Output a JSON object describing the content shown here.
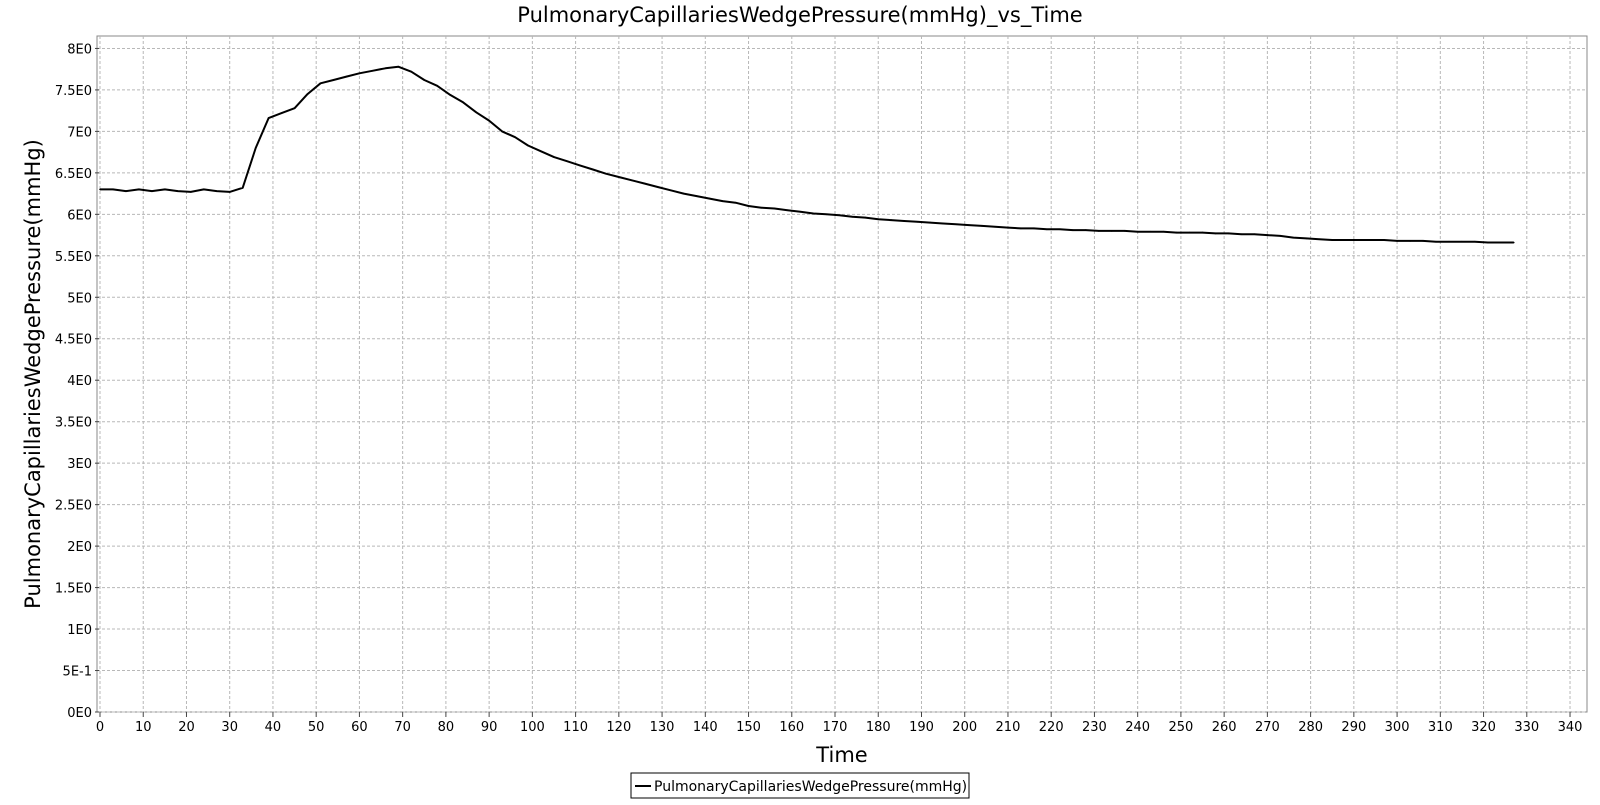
{
  "chart_data": {
    "type": "line",
    "title": "PulmonaryCapillariesWedgePressure(mmHg)_vs_Time",
    "xlabel": "Time",
    "ylabel": "PulmonaryCapillariesWedgePressure(mmHg)",
    "xlim": [
      0,
      343
    ],
    "ylim": [
      0,
      8.15
    ],
    "x_ticks": [
      0,
      10,
      20,
      30,
      40,
      50,
      60,
      70,
      80,
      90,
      100,
      110,
      120,
      130,
      140,
      150,
      160,
      170,
      180,
      190,
      200,
      210,
      220,
      230,
      240,
      250,
      260,
      270,
      280,
      290,
      300,
      310,
      320,
      330,
      340
    ],
    "x_tick_labels": [
      "0",
      "10",
      "20",
      "30",
      "40",
      "50",
      "60",
      "70",
      "80",
      "90",
      "100",
      "110",
      "120",
      "130",
      "140",
      "150",
      "160",
      "170",
      "180",
      "190",
      "200",
      "210",
      "220",
      "230",
      "240",
      "250",
      "260",
      "270",
      "280",
      "290",
      "300",
      "310",
      "320",
      "330",
      "340"
    ],
    "y_ticks": [
      0,
      0.5,
      1,
      1.5,
      2,
      2.5,
      3,
      3.5,
      4,
      4.5,
      5,
      5.5,
      6,
      6.5,
      7,
      7.5,
      8
    ],
    "y_tick_labels": [
      "0E0",
      "5E-1",
      "1E0",
      "1.5E0",
      "2E0",
      "2.5E0",
      "3E0",
      "3.5E0",
      "4E0",
      "4.5E0",
      "5E0",
      "5.5E0",
      "6E0",
      "6.5E0",
      "7E0",
      "7.5E0",
      "8E0"
    ],
    "grid": true,
    "legend": {
      "position": "bottom-center",
      "entries": [
        "PulmonaryCapillariesWedgePressure(mmHg)"
      ]
    },
    "series": [
      {
        "name": "PulmonaryCapillariesWedgePressure(mmHg)",
        "color": "#000000",
        "x": [
          0,
          3,
          6,
          9,
          12,
          15,
          18,
          21,
          24,
          27,
          30,
          33,
          36,
          39,
          42,
          45,
          48,
          51,
          54,
          57,
          60,
          63,
          66,
          69,
          72,
          75,
          78,
          81,
          84,
          87,
          90,
          93,
          96,
          99,
          102,
          105,
          108,
          111,
          114,
          117,
          120,
          123,
          126,
          129,
          132,
          135,
          138,
          141,
          144,
          147,
          150,
          153,
          156,
          159,
          162,
          165,
          168,
          171,
          174,
          177,
          180,
          183,
          186,
          189,
          192,
          195,
          198,
          201,
          204,
          207,
          210,
          213,
          216,
          219,
          222,
          225,
          228,
          231,
          234,
          237,
          240,
          243,
          246,
          249,
          252,
          255,
          258,
          261,
          264,
          267,
          270,
          273,
          276,
          279,
          282,
          285,
          288,
          291,
          294,
          297,
          300,
          303,
          306,
          309,
          312,
          315,
          318,
          321,
          324,
          327
        ],
        "y": [
          6.3,
          6.3,
          6.28,
          6.3,
          6.28,
          6.3,
          6.28,
          6.27,
          6.3,
          6.28,
          6.27,
          6.32,
          6.8,
          7.16,
          7.22,
          7.28,
          7.45,
          7.58,
          7.62,
          7.66,
          7.7,
          7.73,
          7.76,
          7.78,
          7.72,
          7.62,
          7.55,
          7.44,
          7.35,
          7.23,
          7.13,
          7.0,
          6.93,
          6.83,
          6.76,
          6.69,
          6.64,
          6.59,
          6.54,
          6.49,
          6.45,
          6.41,
          6.37,
          6.33,
          6.29,
          6.25,
          6.22,
          6.19,
          6.16,
          6.14,
          6.1,
          6.08,
          6.07,
          6.05,
          6.03,
          6.01,
          6.0,
          5.99,
          5.97,
          5.96,
          5.94,
          5.93,
          5.92,
          5.91,
          5.9,
          5.89,
          5.88,
          5.87,
          5.86,
          5.85,
          5.84,
          5.83,
          5.83,
          5.82,
          5.82,
          5.81,
          5.81,
          5.8,
          5.8,
          5.8,
          5.79,
          5.79,
          5.79,
          5.78,
          5.78,
          5.78,
          5.77,
          5.77,
          5.76,
          5.76,
          5.75,
          5.74,
          5.72,
          5.71,
          5.7,
          5.69,
          5.69,
          5.69,
          5.69,
          5.69,
          5.68,
          5.68,
          5.68,
          5.67,
          5.67,
          5.67,
          5.67,
          5.66,
          5.66,
          5.66
        ]
      }
    ]
  }
}
